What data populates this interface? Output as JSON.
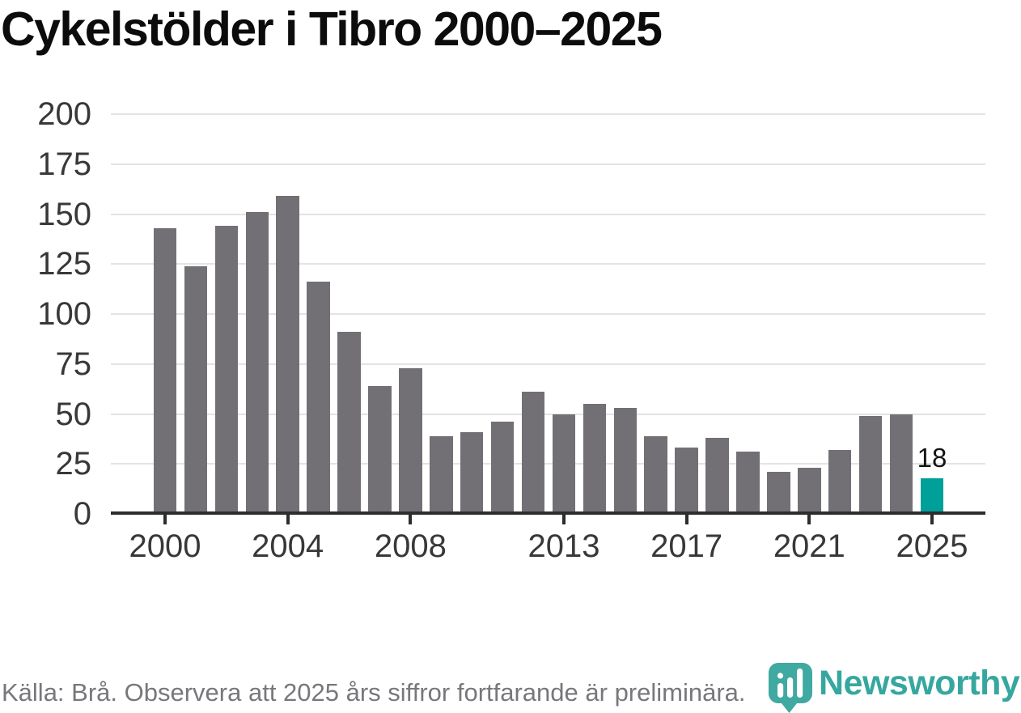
{
  "title": "Cykelstölder i Tibro 2000–2025",
  "footer": {
    "source_note": "Källa: Brå. Observera att 2025 års siffror fortfarande är preliminära.",
    "brand": "Newsworthy"
  },
  "colors": {
    "bar": "#727075",
    "highlight": "#00a09a",
    "grid": "#e3e3e3",
    "axis": "#2d2d2d",
    "title_text": "#0c0c0c",
    "tick_text": "#383838",
    "footer_text": "#77777c",
    "brand_teal": "#36a79f",
    "icon_teal": "#3fa9a2"
  },
  "chart_data": {
    "type": "bar",
    "title": "Cykelstölder i Tibro 2000–2025",
    "xlabel": "",
    "ylabel": "",
    "categories": [
      2000,
      2001,
      2002,
      2003,
      2004,
      2005,
      2006,
      2007,
      2008,
      2009,
      2010,
      2011,
      2012,
      2013,
      2014,
      2015,
      2016,
      2017,
      2018,
      2019,
      2020,
      2021,
      2022,
      2023,
      2024,
      2025
    ],
    "values": [
      143,
      124,
      144,
      151,
      159,
      116,
      91,
      64,
      73,
      39,
      41,
      46,
      61,
      50,
      55,
      53,
      39,
      33,
      38,
      31,
      21,
      23,
      32,
      49,
      50,
      18
    ],
    "highlight_index": 25,
    "highlight_label": "18",
    "highlight_color": "#00a09a",
    "bar_color": "#727075",
    "y_ticks": [
      0,
      25,
      50,
      75,
      100,
      125,
      150,
      175,
      200
    ],
    "ylim": [
      0,
      200
    ],
    "x_tick_labels": [
      "2000",
      "2004",
      "2008",
      "2013",
      "2017",
      "2021",
      "2025"
    ],
    "grid": "horizontal-only",
    "legend": "none"
  }
}
